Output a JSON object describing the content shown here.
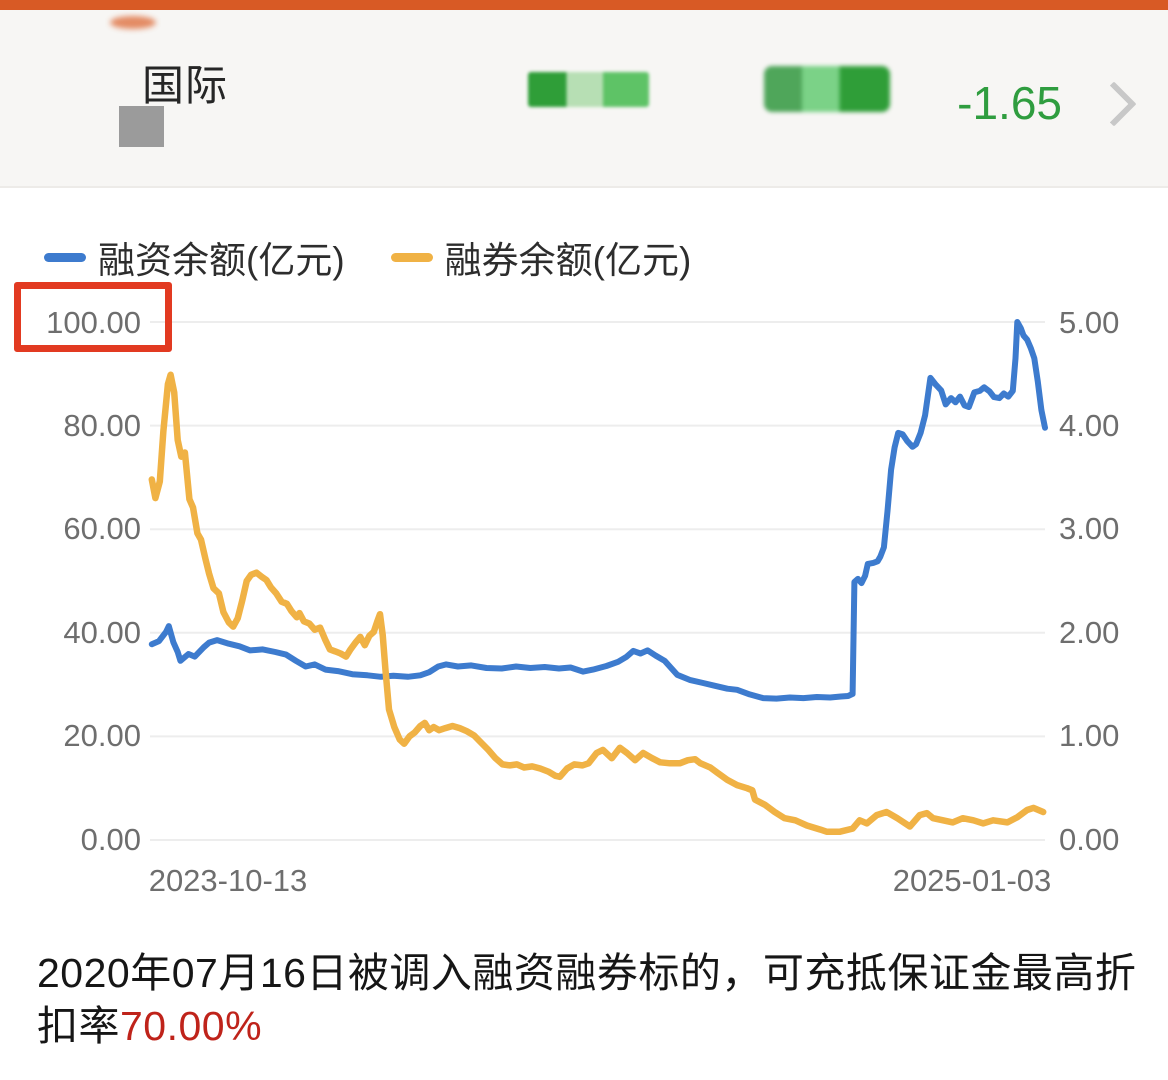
{
  "header": {
    "stock_name_visible": "国际",
    "change_value": "-1.65",
    "accent_bar_color": "#d85a25",
    "positive_green_color": "#2f9d3f"
  },
  "legend": {
    "items": [
      {
        "label": "融资余额(亿元)",
        "color": "#3d7bce"
      },
      {
        "label": "融券余额(亿元)",
        "color": "#f0b245"
      }
    ]
  },
  "chart_data": {
    "type": "line",
    "grid": true,
    "legend_position": "top-left",
    "highlight": {
      "tick": "100.00",
      "box_color": "#e23a21"
    },
    "x_tick_labels": [
      "2023-10-13",
      "2025-01-03"
    ],
    "left_axis": {
      "range": [
        0,
        100
      ],
      "ticks": [
        "100.00",
        "80.00",
        "60.00",
        "40.00",
        "20.00",
        "0.00"
      ]
    },
    "right_axis": {
      "range": [
        0,
        5
      ],
      "ticks": [
        "5.00",
        "4.00",
        "3.00",
        "2.00",
        "1.00",
        "0.00"
      ]
    },
    "series": [
      {
        "name": "融资余额(亿元)",
        "axis": "left",
        "color": "#3d7bce",
        "stroke_width": 6,
        "points": [
          [
            0.002,
            37.8
          ],
          [
            0.01,
            38.4
          ],
          [
            0.018,
            40.2
          ],
          [
            0.021,
            41.3
          ],
          [
            0.026,
            38.2
          ],
          [
            0.031,
            36.3
          ],
          [
            0.034,
            34.6
          ],
          [
            0.043,
            35.9
          ],
          [
            0.05,
            35.4
          ],
          [
            0.06,
            37.2
          ],
          [
            0.066,
            38.1
          ],
          [
            0.075,
            38.6
          ],
          [
            0.088,
            37.9
          ],
          [
            0.1,
            37.4
          ],
          [
            0.112,
            36.6
          ],
          [
            0.126,
            36.8
          ],
          [
            0.14,
            36.3
          ],
          [
            0.152,
            35.8
          ],
          [
            0.163,
            34.6
          ],
          [
            0.174,
            33.5
          ],
          [
            0.184,
            33.9
          ],
          [
            0.196,
            32.9
          ],
          [
            0.21,
            32.6
          ],
          [
            0.226,
            32.0
          ],
          [
            0.243,
            31.8
          ],
          [
            0.258,
            31.5
          ],
          [
            0.272,
            31.7
          ],
          [
            0.288,
            31.5
          ],
          [
            0.302,
            31.8
          ],
          [
            0.312,
            32.4
          ],
          [
            0.322,
            33.5
          ],
          [
            0.331,
            33.9
          ],
          [
            0.344,
            33.5
          ],
          [
            0.359,
            33.7
          ],
          [
            0.376,
            33.2
          ],
          [
            0.393,
            33.1
          ],
          [
            0.409,
            33.5
          ],
          [
            0.425,
            33.2
          ],
          [
            0.441,
            33.4
          ],
          [
            0.457,
            33.1
          ],
          [
            0.47,
            33.3
          ],
          [
            0.484,
            32.5
          ],
          [
            0.495,
            32.9
          ],
          [
            0.51,
            33.6
          ],
          [
            0.523,
            34.4
          ],
          [
            0.532,
            35.3
          ],
          [
            0.54,
            36.5
          ],
          [
            0.548,
            36.0
          ],
          [
            0.556,
            36.6
          ],
          [
            0.565,
            35.6
          ],
          [
            0.575,
            34.6
          ],
          [
            0.589,
            31.9
          ],
          [
            0.603,
            30.9
          ],
          [
            0.618,
            30.3
          ],
          [
            0.63,
            29.8
          ],
          [
            0.645,
            29.2
          ],
          [
            0.656,
            29.0
          ],
          [
            0.67,
            28.1
          ],
          [
            0.685,
            27.4
          ],
          [
            0.7,
            27.3
          ],
          [
            0.715,
            27.5
          ],
          [
            0.73,
            27.4
          ],
          [
            0.745,
            27.6
          ],
          [
            0.76,
            27.5
          ],
          [
            0.772,
            27.7
          ],
          [
            0.78,
            27.8
          ],
          [
            0.785,
            28.2
          ],
          [
            0.787,
            49.8
          ],
          [
            0.791,
            50.4
          ],
          [
            0.795,
            49.6
          ],
          [
            0.799,
            51.0
          ],
          [
            0.802,
            53.3
          ],
          [
            0.808,
            53.5
          ],
          [
            0.813,
            53.8
          ],
          [
            0.816,
            54.7
          ],
          [
            0.82,
            56.5
          ],
          [
            0.824,
            63.5
          ],
          [
            0.828,
            71.5
          ],
          [
            0.832,
            75.8
          ],
          [
            0.836,
            78.6
          ],
          [
            0.841,
            78.3
          ],
          [
            0.846,
            77.0
          ],
          [
            0.852,
            75.9
          ],
          [
            0.856,
            76.4
          ],
          [
            0.861,
            78.6
          ],
          [
            0.866,
            82.0
          ],
          [
            0.872,
            89.2
          ],
          [
            0.878,
            87.9
          ],
          [
            0.884,
            86.8
          ],
          [
            0.889,
            84.1
          ],
          [
            0.895,
            85.3
          ],
          [
            0.9,
            84.5
          ],
          [
            0.905,
            85.6
          ],
          [
            0.91,
            83.9
          ],
          [
            0.915,
            83.6
          ],
          [
            0.921,
            86.4
          ],
          [
            0.927,
            86.7
          ],
          [
            0.932,
            87.4
          ],
          [
            0.938,
            86.6
          ],
          [
            0.943,
            85.5
          ],
          [
            0.949,
            85.3
          ],
          [
            0.954,
            86.2
          ],
          [
            0.959,
            85.6
          ],
          [
            0.964,
            86.7
          ],
          [
            0.967,
            93.0
          ],
          [
            0.969,
            100.0
          ],
          [
            0.973,
            98.8
          ],
          [
            0.976,
            97.4
          ],
          [
            0.98,
            96.6
          ],
          [
            0.984,
            95.0
          ],
          [
            0.988,
            93.0
          ],
          [
            0.992,
            88.5
          ],
          [
            0.996,
            83.0
          ],
          [
            1.0,
            79.6
          ]
        ]
      },
      {
        "name": "融券余额(亿元)",
        "axis": "right",
        "color": "#f0b245",
        "stroke_width": 6.5,
        "points": [
          [
            0.002,
            3.48
          ],
          [
            0.006,
            3.3
          ],
          [
            0.011,
            3.46
          ],
          [
            0.015,
            3.95
          ],
          [
            0.02,
            4.4
          ],
          [
            0.023,
            4.49
          ],
          [
            0.027,
            4.32
          ],
          [
            0.031,
            3.86
          ],
          [
            0.035,
            3.7
          ],
          [
            0.039,
            3.74
          ],
          [
            0.044,
            3.29
          ],
          [
            0.048,
            3.21
          ],
          [
            0.053,
            2.96
          ],
          [
            0.057,
            2.9
          ],
          [
            0.062,
            2.71
          ],
          [
            0.066,
            2.57
          ],
          [
            0.071,
            2.43
          ],
          [
            0.077,
            2.38
          ],
          [
            0.082,
            2.2
          ],
          [
            0.088,
            2.1
          ],
          [
            0.093,
            2.06
          ],
          [
            0.098,
            2.14
          ],
          [
            0.103,
            2.31
          ],
          [
            0.108,
            2.5
          ],
          [
            0.113,
            2.56
          ],
          [
            0.119,
            2.58
          ],
          [
            0.125,
            2.54
          ],
          [
            0.13,
            2.51
          ],
          [
            0.135,
            2.44
          ],
          [
            0.141,
            2.38
          ],
          [
            0.147,
            2.3
          ],
          [
            0.153,
            2.28
          ],
          [
            0.158,
            2.21
          ],
          [
            0.164,
            2.15
          ],
          [
            0.167,
            2.19
          ],
          [
            0.172,
            2.11
          ],
          [
            0.178,
            2.09
          ],
          [
            0.184,
            2.03
          ],
          [
            0.19,
            2.05
          ],
          [
            0.196,
            1.93
          ],
          [
            0.201,
            1.84
          ],
          [
            0.207,
            1.82
          ],
          [
            0.213,
            1.8
          ],
          [
            0.219,
            1.77
          ],
          [
            0.224,
            1.84
          ],
          [
            0.23,
            1.91
          ],
          [
            0.235,
            1.96
          ],
          [
            0.24,
            1.88
          ],
          [
            0.245,
            1.97
          ],
          [
            0.25,
            2.01
          ],
          [
            0.254,
            2.11
          ],
          [
            0.257,
            2.18
          ],
          [
            0.26,
            1.98
          ],
          [
            0.263,
            1.65
          ],
          [
            0.267,
            1.26
          ],
          [
            0.273,
            1.09
          ],
          [
            0.279,
            0.97
          ],
          [
            0.284,
            0.93
          ],
          [
            0.29,
            1.0
          ],
          [
            0.296,
            1.04
          ],
          [
            0.302,
            1.1
          ],
          [
            0.307,
            1.13
          ],
          [
            0.312,
            1.06
          ],
          [
            0.317,
            1.09
          ],
          [
            0.323,
            1.06
          ],
          [
            0.33,
            1.08
          ],
          [
            0.338,
            1.1
          ],
          [
            0.346,
            1.08
          ],
          [
            0.354,
            1.05
          ],
          [
            0.362,
            1.01
          ],
          [
            0.37,
            0.94
          ],
          [
            0.378,
            0.87
          ],
          [
            0.386,
            0.79
          ],
          [
            0.394,
            0.73
          ],
          [
            0.402,
            0.72
          ],
          [
            0.41,
            0.73
          ],
          [
            0.418,
            0.7
          ],
          [
            0.427,
            0.71
          ],
          [
            0.436,
            0.69
          ],
          [
            0.445,
            0.66
          ],
          [
            0.453,
            0.62
          ],
          [
            0.458,
            0.61
          ],
          [
            0.466,
            0.69
          ],
          [
            0.474,
            0.73
          ],
          [
            0.483,
            0.72
          ],
          [
            0.49,
            0.74
          ],
          [
            0.499,
            0.84
          ],
          [
            0.506,
            0.87
          ],
          [
            0.516,
            0.79
          ],
          [
            0.525,
            0.89
          ],
          [
            0.533,
            0.84
          ],
          [
            0.542,
            0.77
          ],
          [
            0.551,
            0.84
          ],
          [
            0.561,
            0.79
          ],
          [
            0.57,
            0.75
          ],
          [
            0.581,
            0.74
          ],
          [
            0.592,
            0.74
          ],
          [
            0.601,
            0.77
          ],
          [
            0.609,
            0.78
          ],
          [
            0.615,
            0.74
          ],
          [
            0.626,
            0.7
          ],
          [
            0.634,
            0.65
          ],
          [
            0.645,
            0.58
          ],
          [
            0.656,
            0.53
          ],
          [
            0.667,
            0.5
          ],
          [
            0.673,
            0.48
          ],
          [
            0.676,
            0.39
          ],
          [
            0.687,
            0.34
          ],
          [
            0.698,
            0.27
          ],
          [
            0.709,
            0.21
          ],
          [
            0.721,
            0.19
          ],
          [
            0.734,
            0.14
          ],
          [
            0.749,
            0.1
          ],
          [
            0.756,
            0.08
          ],
          [
            0.771,
            0.08
          ],
          [
            0.785,
            0.11
          ],
          [
            0.793,
            0.19
          ],
          [
            0.801,
            0.16
          ],
          [
            0.812,
            0.24
          ],
          [
            0.823,
            0.27
          ],
          [
            0.835,
            0.21
          ],
          [
            0.849,
            0.13
          ],
          [
            0.86,
            0.24
          ],
          [
            0.868,
            0.26
          ],
          [
            0.875,
            0.21
          ],
          [
            0.886,
            0.19
          ],
          [
            0.897,
            0.17
          ],
          [
            0.908,
            0.21
          ],
          [
            0.92,
            0.19
          ],
          [
            0.931,
            0.16
          ],
          [
            0.942,
            0.19
          ],
          [
            0.958,
            0.17
          ],
          [
            0.969,
            0.22
          ],
          [
            0.98,
            0.29
          ],
          [
            0.987,
            0.31
          ],
          [
            0.998,
            0.27
          ]
        ]
      }
    ]
  },
  "footnote": {
    "line1": "2020年07月16日被调入融资融券标的，可充抵保证金最高折",
    "line2_prefix": "扣率",
    "line2_highlight": "70.00%",
    "highlight_color": "#bf231a"
  }
}
